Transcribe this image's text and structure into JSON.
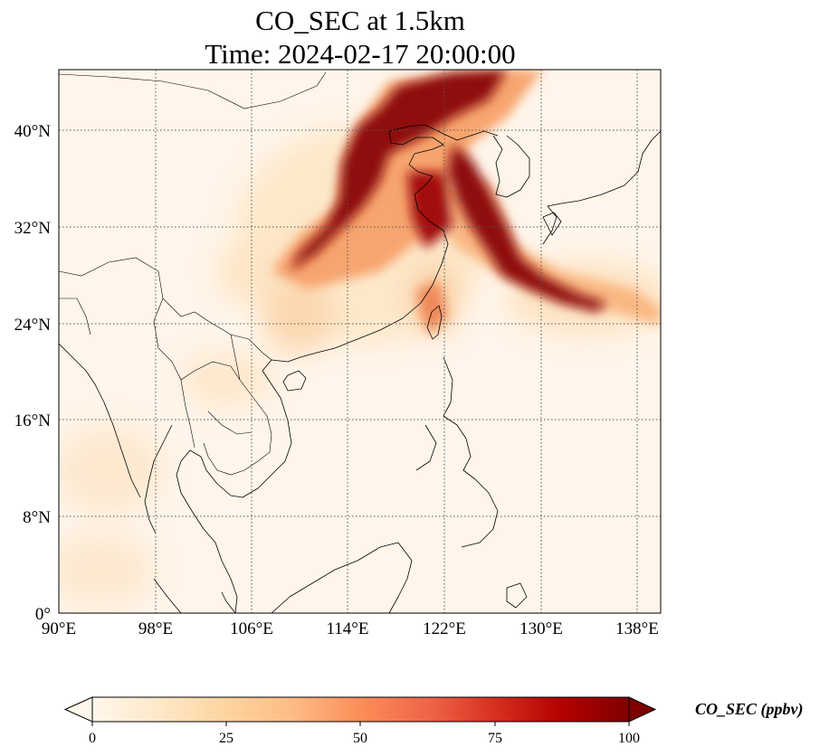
{
  "title": {
    "line1": "CO_SEC at 1.5km",
    "line2": "Time: 2024-02-17 20:00:00"
  },
  "map": {
    "lon_range": [
      90,
      140
    ],
    "lat_range": [
      0,
      45
    ],
    "lon_ticks": [
      "90°E",
      "98°E",
      "106°E",
      "114°E",
      "122°E",
      "130°E",
      "138°E"
    ],
    "lat_ticks": [
      "0°",
      "8°N",
      "16°N",
      "24°N",
      "32°N",
      "40°N"
    ],
    "gridlines": true
  },
  "colorbar": {
    "label": "CO_SEC (ppbv)",
    "ticks": [
      "0",
      "25",
      "50",
      "75",
      "100"
    ],
    "range": [
      0,
      100
    ],
    "extend": "both",
    "colormap": "OrRd",
    "colors": [
      "#fff7ec",
      "#fee8c8",
      "#fdd49e",
      "#fdbb84",
      "#fc8d59",
      "#ef6548",
      "#d7301f",
      "#b30000",
      "#7f0000"
    ]
  }
}
